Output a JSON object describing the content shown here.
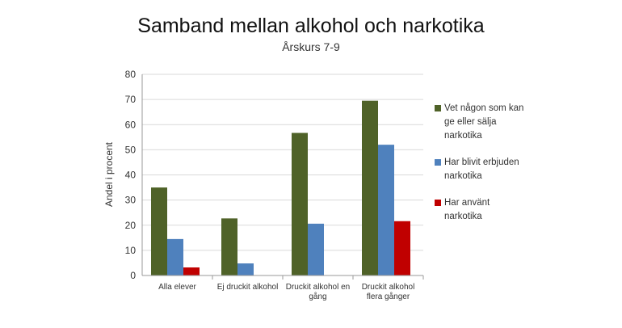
{
  "chart_data": {
    "type": "bar",
    "title": "Samband mellan alkohol och narkotika",
    "subtitle": "Årskurs 7-9",
    "ylabel": "Andel i procent",
    "xlabel": "",
    "ylim": [
      0,
      80
    ],
    "yticks": [
      0,
      10,
      20,
      30,
      40,
      50,
      60,
      70,
      80
    ],
    "grid": true,
    "legend_position": "right",
    "categories": [
      [
        "Alla elever"
      ],
      [
        "Ej druckit alkohol"
      ],
      [
        "Druckit alkohol en",
        "gång"
      ],
      [
        "Druckit alkohol",
        "flera gånger"
      ]
    ],
    "series": [
      {
        "name": [
          "Vet någon som kan",
          "ge eller sälja",
          "narkotika"
        ],
        "color": "#4f6228",
        "values": [
          35,
          22.7,
          56.7,
          69.5
        ]
      },
      {
        "name": [
          "Har blivit erbjuden",
          "narkotika"
        ],
        "color": "#4f81bd",
        "values": [
          14.5,
          4.8,
          20.6,
          52
        ]
      },
      {
        "name": [
          "Har använt",
          "narkotika"
        ],
        "color": "#c00000",
        "values": [
          3.2,
          0,
          0,
          21.6
        ]
      }
    ]
  }
}
